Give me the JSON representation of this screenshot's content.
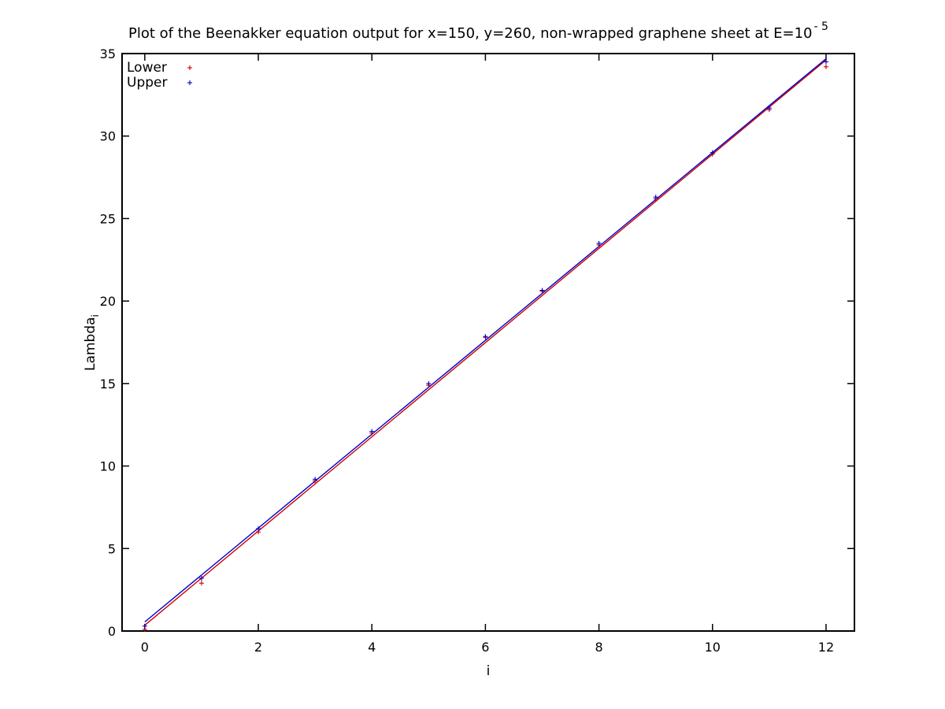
{
  "chart_data": {
    "type": "scatter",
    "title": "Plot of the Beenakker equation output for x=150, y=260, non-wrapped graphene sheet at E=10",
    "title_superscript": "- 5",
    "xlabel": "i",
    "ylabel": "Lambda",
    "ylabel_subscript": "i",
    "xlim": [
      -0.4,
      12.5
    ],
    "ylim": [
      0,
      35
    ],
    "x_ticks": [
      0,
      2,
      4,
      6,
      8,
      10,
      12
    ],
    "y_ticks": [
      0,
      5,
      10,
      15,
      20,
      25,
      30,
      35
    ],
    "grid": false,
    "legend_position": "top-left",
    "series": [
      {
        "name": "Lower",
        "color": "#cc0000",
        "marker": "plus",
        "x": [
          0,
          1,
          2,
          3,
          4,
          5,
          6,
          7,
          8,
          9,
          10,
          11,
          12
        ],
        "y": [
          0.1,
          2.9,
          6.0,
          9.1,
          12.0,
          14.9,
          17.8,
          20.6,
          23.4,
          26.2,
          28.9,
          31.6,
          34.2
        ],
        "fit": {
          "intercept": 0.35,
          "slope": 2.855
        }
      },
      {
        "name": "Upper",
        "color": "#0000cc",
        "marker": "plus",
        "x": [
          0,
          1,
          2,
          3,
          4,
          5,
          6,
          7,
          8,
          9,
          10,
          11,
          12
        ],
        "y": [
          0.3,
          3.2,
          6.2,
          9.2,
          12.1,
          15.0,
          17.85,
          20.65,
          23.5,
          26.3,
          29.0,
          31.7,
          34.5
        ],
        "fit": {
          "intercept": 0.55,
          "slope": 2.845
        }
      }
    ]
  }
}
